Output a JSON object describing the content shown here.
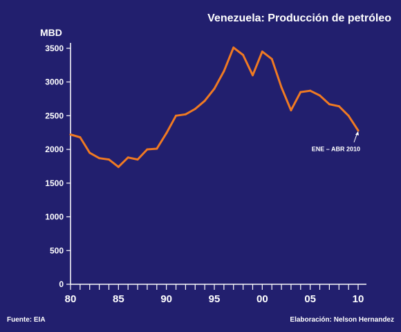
{
  "chart_data": {
    "type": "line",
    "title": "Venezuela: Producción de petróleo",
    "ylabel": "MBD",
    "xlabel": "",
    "source": "Fuente: EIA",
    "credit": "Elaboración: Nelson Hernandez",
    "annotation": "ENE – ABR 2010",
    "x_ticks": [
      "80",
      "85",
      "90",
      "95",
      "00",
      "05",
      "10"
    ],
    "y_ticks": [
      0,
      500,
      1000,
      1500,
      2000,
      2500,
      3000,
      3500
    ],
    "xlim": [
      1980,
      2010
    ],
    "ylim": [
      0,
      3600
    ],
    "grid": false,
    "colors": {
      "background": "#221f6e",
      "line": "#f07a22",
      "text": "#ffffff",
      "axis": "#ffffff"
    },
    "x": [
      1980,
      1981,
      1982,
      1983,
      1984,
      1985,
      1986,
      1987,
      1988,
      1989,
      1990,
      1991,
      1992,
      1993,
      1994,
      1995,
      1996,
      1997,
      1998,
      1999,
      2000,
      2001,
      2002,
      2003,
      2004,
      2005,
      2006,
      2007,
      2008,
      2009,
      2010
    ],
    "values": [
      2220,
      2180,
      1950,
      1870,
      1850,
      1740,
      1880,
      1850,
      2000,
      2010,
      2240,
      2500,
      2520,
      2600,
      2720,
      2900,
      3160,
      3510,
      3400,
      3100,
      3450,
      3340,
      2920,
      2580,
      2850,
      2870,
      2800,
      2670,
      2640,
      2500,
      2280
    ]
  }
}
